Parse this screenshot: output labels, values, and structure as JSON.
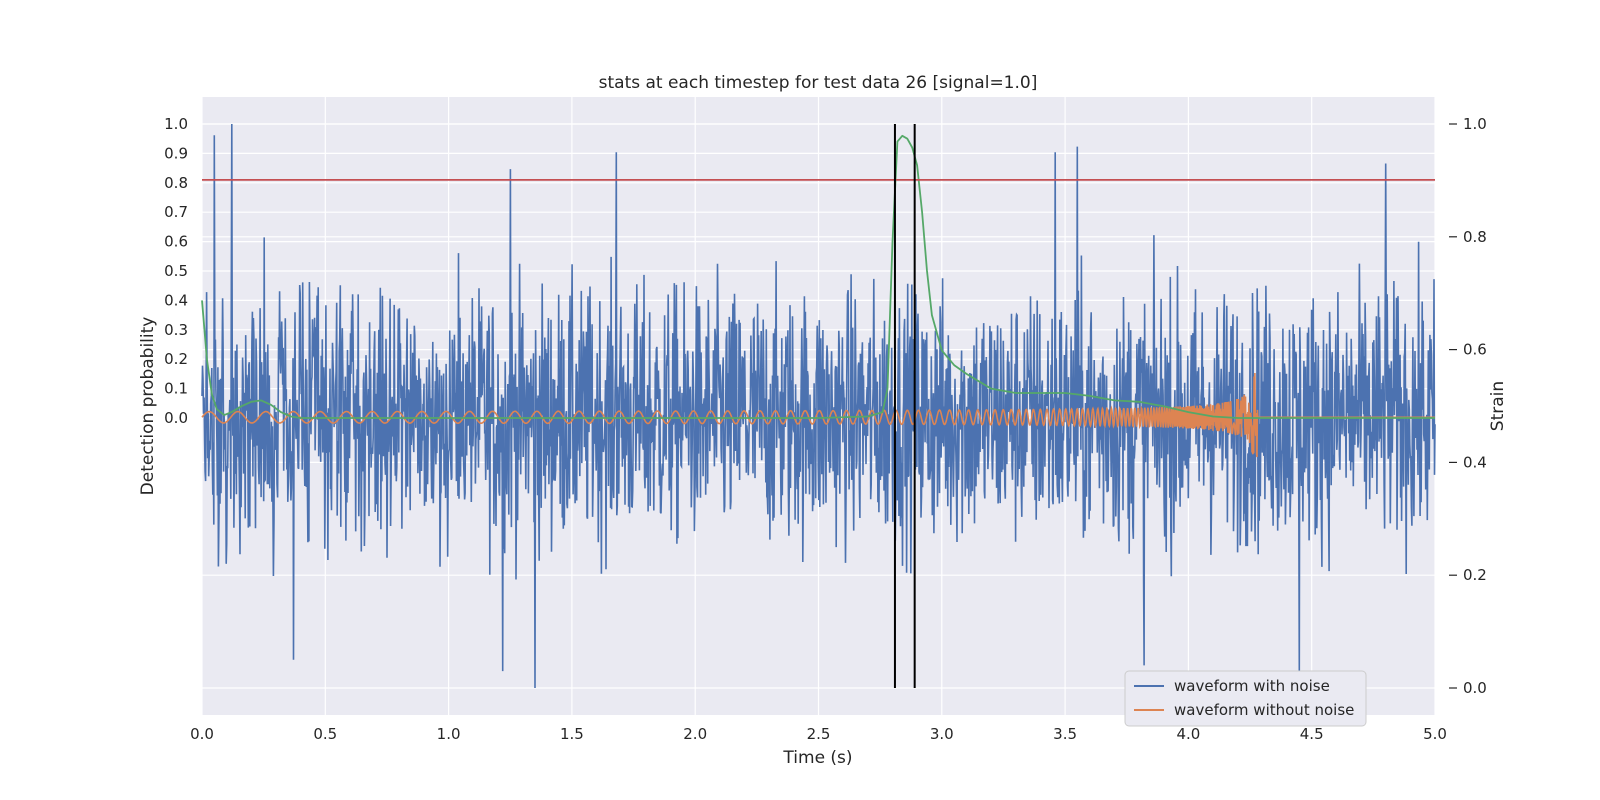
{
  "chart_data": {
    "type": "line",
    "title": "stats at each timestep for test data 26 [signal=1.0]",
    "xlabel": "Time (s)",
    "ylabel_left": "Detection probability",
    "ylabel_right": "Strain",
    "xlim": [
      0.0,
      5.0
    ],
    "x_ticks": [
      "0.0",
      "0.5",
      "1.0",
      "1.5",
      "2.0",
      "2.5",
      "3.0",
      "3.5",
      "4.0",
      "4.5",
      "5.0"
    ],
    "y_left_ticks": [
      "0.0",
      "0.1",
      "0.2",
      "0.3",
      "0.4",
      "0.5",
      "0.6",
      "0.7",
      "0.8",
      "0.9",
      "1.0"
    ],
    "y_right_ticks": [
      "0.0",
      "0.2",
      "0.4",
      "0.6",
      "0.8",
      "1.0"
    ],
    "threshold": {
      "axis": "left",
      "y": 0.81,
      "color": "#c44e52"
    },
    "detection_window": {
      "x": [
        2.81,
        2.89
      ],
      "color": "#000000"
    },
    "grid": true,
    "legend_position": "bottom-right",
    "series": [
      {
        "name": "waveform with noise",
        "axis": "right",
        "color": "#4c72b0",
        "kind": "noise",
        "samples": 2400,
        "baseline": 0.48,
        "peaks": [
          {
            "x": 0.05,
            "y": 0.98
          },
          {
            "x": 0.12,
            "y": 1.0
          },
          {
            "x": 1.25,
            "y": 0.92
          },
          {
            "x": 1.68,
            "y": 0.95
          },
          {
            "x": 3.46,
            "y": 0.95
          },
          {
            "x": 3.55,
            "y": 0.96
          },
          {
            "x": 4.8,
            "y": 0.93
          },
          {
            "x": 1.35,
            "y": 0.0
          },
          {
            "x": 4.45,
            "y": 0.03
          },
          {
            "x": 0.37,
            "y": 0.05
          },
          {
            "x": 3.82,
            "y": 0.04
          },
          {
            "x": 1.22,
            "y": 0.03
          }
        ]
      },
      {
        "name": "waveform without noise",
        "axis": "right",
        "color": "#dd8452",
        "kind": "chirp",
        "baseline": 0.48,
        "x_end": 4.28,
        "peak_amplitude": 0.075
      },
      {
        "name": "",
        "axis": "left",
        "color": "#55a868",
        "kind": "line",
        "x": [
          0.0,
          0.02,
          0.04,
          0.06,
          0.09,
          0.12,
          0.16,
          0.2,
          0.24,
          0.28,
          0.32,
          0.36,
          0.4,
          0.6,
          1.0,
          1.5,
          2.0,
          2.5,
          2.7,
          2.76,
          2.78,
          2.8,
          2.82,
          2.84,
          2.86,
          2.88,
          2.9,
          2.92,
          2.94,
          2.96,
          3.0,
          3.05,
          3.1,
          3.2,
          3.3,
          3.4,
          3.5,
          3.6,
          3.7,
          3.8,
          3.9,
          4.0,
          4.1,
          4.2,
          4.3,
          4.5,
          5.0
        ],
        "y": [
          0.4,
          0.2,
          0.08,
          0.03,
          0.01,
          0.02,
          0.04,
          0.055,
          0.06,
          0.045,
          0.02,
          0.005,
          0.0,
          0.0,
          0.0,
          0.0,
          0.0,
          0.0,
          0.005,
          0.02,
          0.1,
          0.6,
          0.94,
          0.96,
          0.95,
          0.92,
          0.86,
          0.7,
          0.5,
          0.35,
          0.23,
          0.18,
          0.15,
          0.1,
          0.085,
          0.085,
          0.085,
          0.075,
          0.06,
          0.055,
          0.04,
          0.02,
          0.005,
          0.0,
          0.0,
          0.0,
          0.0
        ]
      }
    ]
  }
}
